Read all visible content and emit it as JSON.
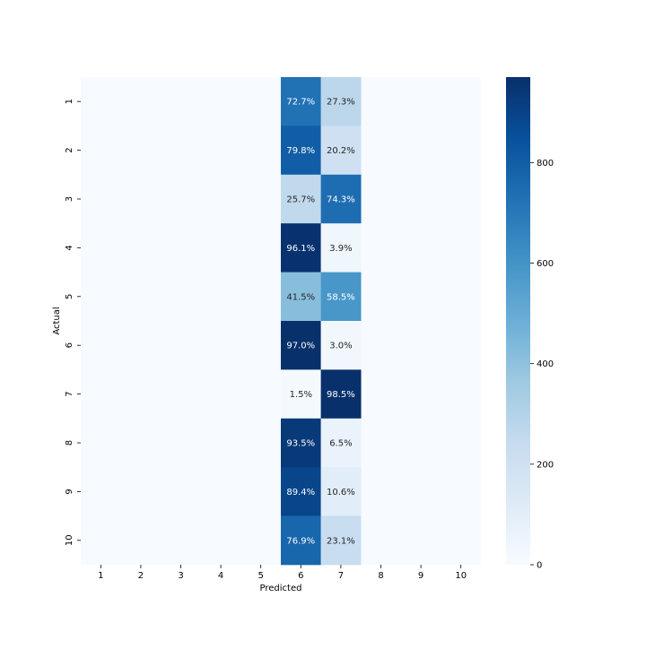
{
  "chart_data": {
    "type": "heatmap",
    "title": "",
    "xlabel": "Predicted",
    "ylabel": "Actual",
    "x_categories": [
      "1",
      "2",
      "3",
      "4",
      "5",
      "6",
      "7",
      "8",
      "9",
      "10"
    ],
    "y_categories": [
      "1",
      "2",
      "3",
      "4",
      "5",
      "6",
      "7",
      "8",
      "9",
      "10"
    ],
    "colormap": "Blues",
    "color_low": "#f7fbff",
    "color_high": "#08306b",
    "colorbar_range": [
      0,
      970
    ],
    "colorbar_ticks": [
      0,
      200,
      400,
      600,
      800
    ],
    "cells": [
      {
        "actual": "1",
        "predicted": "6",
        "label": "72.7%",
        "value": 727
      },
      {
        "actual": "1",
        "predicted": "7",
        "label": "27.3%",
        "value": 273
      },
      {
        "actual": "2",
        "predicted": "6",
        "label": "79.8%",
        "value": 798
      },
      {
        "actual": "2",
        "predicted": "7",
        "label": "20.2%",
        "value": 202
      },
      {
        "actual": "3",
        "predicted": "6",
        "label": "25.7%",
        "value": 257
      },
      {
        "actual": "3",
        "predicted": "7",
        "label": "74.3%",
        "value": 743
      },
      {
        "actual": "4",
        "predicted": "6",
        "label": "96.1%",
        "value": 961
      },
      {
        "actual": "4",
        "predicted": "7",
        "label": "3.9%",
        "value": 39
      },
      {
        "actual": "5",
        "predicted": "6",
        "label": "41.5%",
        "value": 415
      },
      {
        "actual": "5",
        "predicted": "7",
        "label": "58.5%",
        "value": 585
      },
      {
        "actual": "6",
        "predicted": "6",
        "label": "97.0%",
        "value": 970
      },
      {
        "actual": "6",
        "predicted": "7",
        "label": "3.0%",
        "value": 30
      },
      {
        "actual": "7",
        "predicted": "6",
        "label": "1.5%",
        "value": 15
      },
      {
        "actual": "7",
        "predicted": "7",
        "label": "98.5%",
        "value": 985
      },
      {
        "actual": "8",
        "predicted": "6",
        "label": "93.5%",
        "value": 935
      },
      {
        "actual": "8",
        "predicted": "7",
        "label": "6.5%",
        "value": 65
      },
      {
        "actual": "9",
        "predicted": "6",
        "label": "89.4%",
        "value": 894
      },
      {
        "actual": "9",
        "predicted": "7",
        "label": "10.6%",
        "value": 106
      },
      {
        "actual": "10",
        "predicted": "6",
        "label": "76.9%",
        "value": 769
      },
      {
        "actual": "10",
        "predicted": "7",
        "label": "23.1%",
        "value": 231
      }
    ]
  }
}
